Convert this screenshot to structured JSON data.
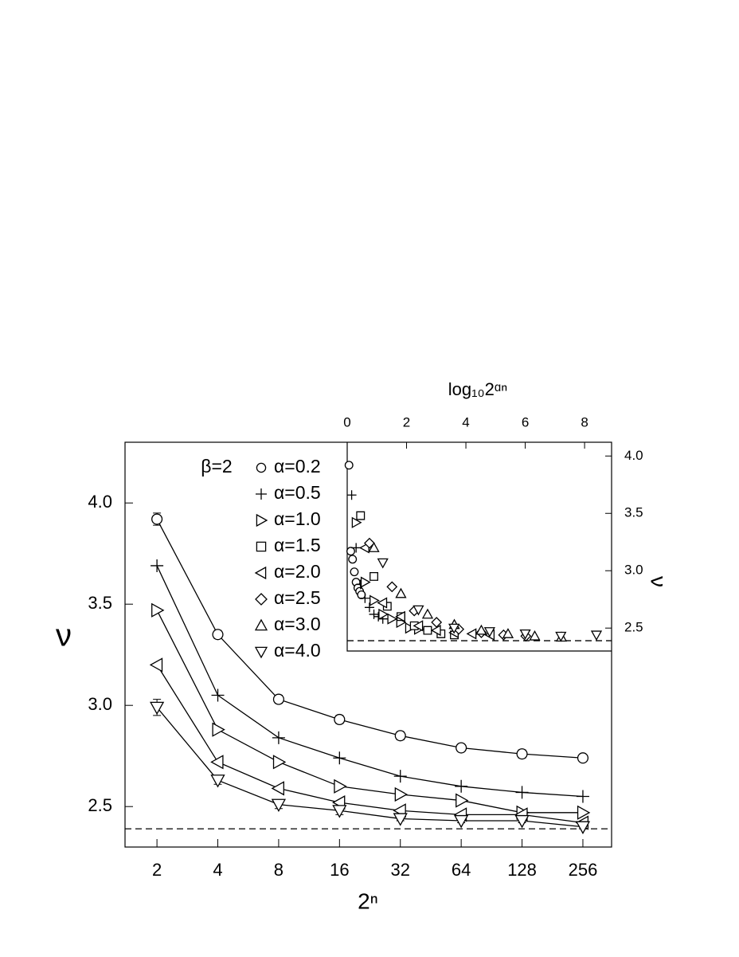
{
  "chart_data": [
    {
      "type": "line",
      "xscale": "log2",
      "xlabel": "2ⁿ",
      "ylabel": "ν",
      "annotation": "β=2",
      "color": "#000000",
      "x": [
        2,
        4,
        8,
        16,
        32,
        64,
        128,
        256
      ],
      "xlim": [
        1.39,
        355
      ],
      "xticks": [
        2,
        4,
        8,
        16,
        32,
        64,
        128,
        256
      ],
      "ylim": [
        2.3,
        4.3
      ],
      "yticks": [
        {
          "value": 2.5,
          "label": "2.5"
        },
        {
          "value": 3,
          "label": "3.0"
        },
        {
          "value": 3.5,
          "label": "3.5"
        },
        {
          "value": 4,
          "label": "4.0"
        }
      ],
      "hline": 2.39,
      "series": [
        {
          "marker": "circle",
          "values": [
            3.92,
            3.35,
            3.03,
            2.93,
            2.85,
            2.79,
            2.76,
            2.74
          ],
          "errors": [
            0.03,
            0.02,
            0.02,
            0.02,
            0.02,
            0.01,
            0.02,
            0.01
          ]
        },
        {
          "marker": "plus",
          "values": [
            3.69,
            3.05,
            2.84,
            2.74,
            2.65,
            2.6,
            2.57,
            2.55
          ]
        },
        {
          "marker": "right",
          "values": [
            3.47,
            2.88,
            2.72,
            2.6,
            2.56,
            2.53,
            2.47,
            2.47
          ]
        },
        {
          "marker": "left",
          "values": [
            3.2,
            2.72,
            2.59,
            2.52,
            2.48,
            2.46,
            2.46,
            2.42
          ]
        },
        {
          "marker": "down",
          "values": [
            2.99,
            2.63,
            2.51,
            2.48,
            2.44,
            2.43,
            2.43,
            2.4
          ],
          "errors": [
            0.04,
            0.02,
            0.02,
            0.02,
            0.01,
            0.01,
            0.01,
            0.01
          ]
        }
      ]
    },
    {
      "type": "scatter",
      "xlabel": "log₁₀2ᵅⁿ",
      "ylabel": "ν",
      "color": "#000000",
      "xlim": [
        0,
        8.91
      ],
      "xticks": [
        0,
        2,
        4,
        6,
        8
      ],
      "ylim": [
        2.3,
        4.12
      ],
      "yticks": [
        {
          "value": 2.5,
          "label": "2.5"
        },
        {
          "value": 3,
          "label": "3.0"
        },
        {
          "value": 3.5,
          "label": "3.5"
        },
        {
          "value": 4,
          "label": "4.0"
        }
      ],
      "hline": 2.39,
      "series": [
        {
          "name": "α=0.2",
          "marker": "circle",
          "x": [
            0.06,
            0.12,
            0.18,
            0.24,
            0.3,
            0.36,
            0.42,
            0.48
          ],
          "values": [
            3.92,
            3.17,
            3.1,
            2.99,
            2.9,
            2.85,
            2.82,
            2.79
          ]
        },
        {
          "name": "α=0.5",
          "marker": "plus",
          "x": [
            0.15,
            0.3,
            0.45,
            0.6,
            0.75,
            0.9,
            1.05,
            1.2
          ],
          "values": [
            3.66,
            3.2,
            2.88,
            2.76,
            2.68,
            2.62,
            2.6,
            2.58
          ]
        },
        {
          "name": "α=1.0",
          "marker": "right",
          "x": [
            0.3,
            0.6,
            0.9,
            1.2,
            1.5,
            1.8,
            2.1,
            2.4
          ],
          "values": [
            3.42,
            2.9,
            2.74,
            2.62,
            2.58,
            2.55,
            2.5,
            2.49
          ]
        },
        {
          "name": "α=1.5",
          "marker": "square",
          "x": [
            0.45,
            0.9,
            1.35,
            1.81,
            2.26,
            2.71,
            3.16,
            3.61
          ],
          "values": [
            3.48,
            2.95,
            2.69,
            2.6,
            2.52,
            2.48,
            2.45,
            2.44
          ]
        },
        {
          "name": "α=2.0",
          "marker": "left",
          "x": [
            0.6,
            1.2,
            1.81,
            2.41,
            3.01,
            3.61,
            4.21,
            4.82
          ],
          "values": [
            3.2,
            2.72,
            2.6,
            2.52,
            2.48,
            2.46,
            2.45,
            2.44
          ]
        },
        {
          "name": "α=2.5",
          "marker": "diamond",
          "x": [
            0.75,
            1.51,
            2.26,
            3.01,
            3.76,
            4.52,
            5.27,
            6.02
          ],
          "values": [
            3.24,
            2.86,
            2.65,
            2.55,
            2.49,
            2.46,
            2.44,
            2.43
          ]
        },
        {
          "name": "α=3.0",
          "marker": "up",
          "x": [
            0.9,
            1.81,
            2.71,
            3.61,
            4.52,
            5.42,
            6.32,
            7.22
          ],
          "values": [
            3.2,
            2.8,
            2.62,
            2.53,
            2.48,
            2.45,
            2.43,
            2.42
          ]
        },
        {
          "name": "α=4.0",
          "marker": "down",
          "x": [
            1.2,
            2.4,
            3.6,
            4.8,
            6.0,
            7.2,
            8.4
          ],
          "values": [
            3.07,
            2.66,
            2.5,
            2.47,
            2.45,
            2.43,
            2.44
          ]
        }
      ]
    }
  ]
}
